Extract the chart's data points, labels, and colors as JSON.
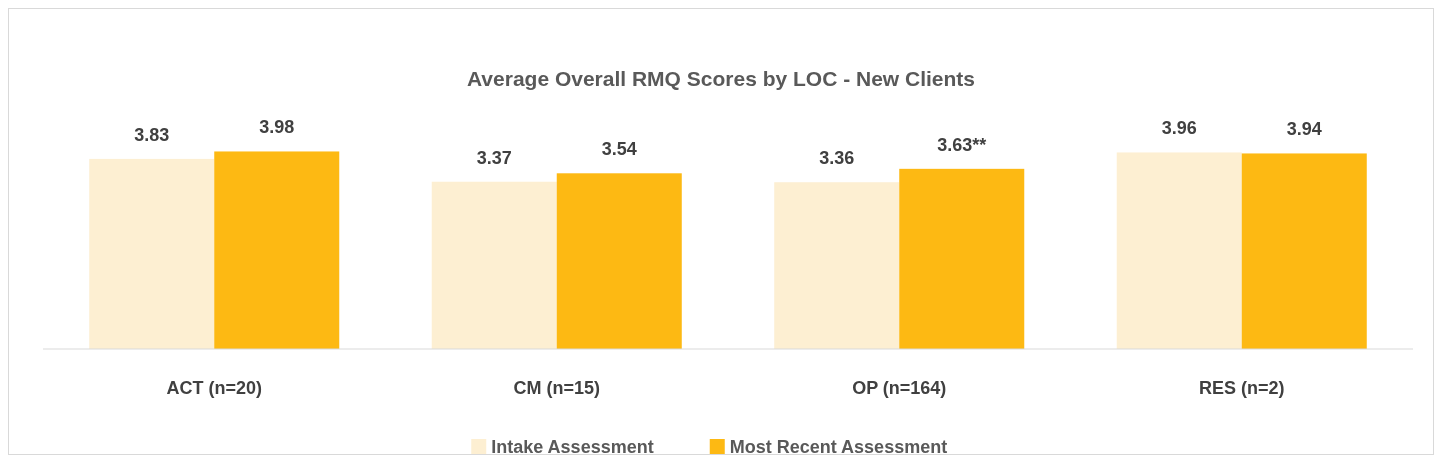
{
  "chart_data": {
    "type": "bar",
    "title": "Average Overall RMQ Scores by LOC - New Clients",
    "categories": [
      "ACT (n=20)",
      "CM (n=15)",
      "OP (n=164)",
      "RES (n=2)"
    ],
    "series": [
      {
        "name": "Intake Assessment",
        "color": "#fdefd2",
        "values": [
          3.83,
          3.37,
          3.36,
          3.96
        ],
        "value_labels": [
          "3.83",
          "3.37",
          "3.36",
          "3.96"
        ]
      },
      {
        "name": "Most Recent Assessment",
        "color": "#fdb913",
        "values": [
          3.98,
          3.54,
          3.63,
          3.94
        ],
        "value_labels": [
          "3.98",
          "3.54",
          "3.63**",
          "3.94"
        ]
      }
    ],
    "legend": "bottom",
    "grid": false
  }
}
